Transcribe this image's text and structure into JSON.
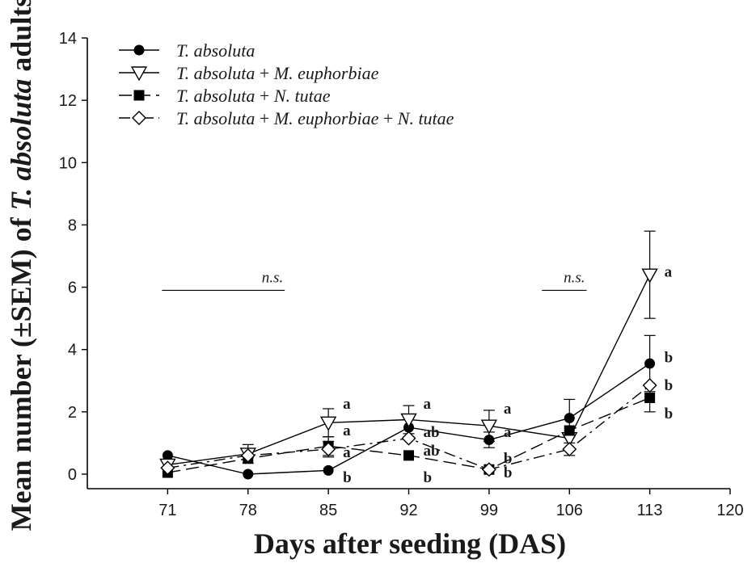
{
  "chart_data": {
    "type": "line",
    "xlabel": "Days after seeding (DAS)",
    "ylabel_parts": [
      "Mean number (±SEM) of ",
      "T. absoluta",
      " adults"
    ],
    "xlim": [
      64,
      120
    ],
    "ylim": [
      0,
      14
    ],
    "x_ticks": [
      71,
      78,
      85,
      92,
      99,
      106,
      113,
      120
    ],
    "y_ticks": [
      0,
      2,
      4,
      6,
      8,
      10,
      12,
      14
    ],
    "x": [
      71,
      78,
      85,
      92,
      99,
      106,
      113
    ],
    "series": [
      {
        "name": "T. absoluta",
        "legend_parts": [
          {
            "t": "T. absoluta",
            "i": true
          }
        ],
        "marker": "circle-filled",
        "dash": "solid",
        "values": [
          0.6,
          0.0,
          0.12,
          1.5,
          1.1,
          1.8,
          3.55
        ],
        "sem": [
          0.0,
          0.0,
          0.0,
          0.3,
          0.25,
          0.6,
          0.9
        ]
      },
      {
        "name": "T. absoluta + M. euphorbiae",
        "legend_parts": [
          {
            "t": "T. absoluta",
            "i": true
          },
          {
            "t": " + ",
            "i": false
          },
          {
            "t": "M. euphorbiae",
            "i": true
          }
        ],
        "marker": "triangle-down-open",
        "dash": "solid",
        "values": [
          0.3,
          0.65,
          1.65,
          1.75,
          1.55,
          1.15,
          6.4
        ],
        "sem": [
          0.0,
          0.3,
          0.45,
          0.45,
          0.5,
          0.0,
          1.4
        ]
      },
      {
        "name": "T. absoluta + N. tutae",
        "legend_parts": [
          {
            "t": "T. absoluta",
            "i": true
          },
          {
            "t": " + ",
            "i": false
          },
          {
            "t": "N. tutae",
            "i": true
          }
        ],
        "marker": "square-filled",
        "dash": "long-dash",
        "values": [
          0.05,
          0.5,
          0.9,
          0.6,
          0.15,
          1.4,
          2.45
        ],
        "sem": [
          0.0,
          0.0,
          0.3,
          0.0,
          0.0,
          0.0,
          0.45
        ]
      },
      {
        "name": "T. absoluta + M. euphorbiae + N. tutae",
        "legend_parts": [
          {
            "t": "T. absoluta",
            "i": true
          },
          {
            "t": " + ",
            "i": false
          },
          {
            "t": "M. euphorbiae",
            "i": true
          },
          {
            "t": " + ",
            "i": false
          },
          {
            "t": "N. tutae",
            "i": true
          }
        ],
        "marker": "diamond-open",
        "dash": "dash-dot",
        "values": [
          0.2,
          0.6,
          0.8,
          1.15,
          0.15,
          0.8,
          2.85
        ],
        "sem": [
          0.0,
          0.0,
          0.25,
          0.0,
          0.0,
          0.2,
          0.0
        ]
      }
    ],
    "ns_lines": [
      {
        "x": [
          70.5,
          81.2
        ],
        "y": 5.9,
        "label": "n.s."
      },
      {
        "x": [
          103.6,
          107.5
        ],
        "y": 5.9,
        "label": "n.s."
      }
    ],
    "annotations": [
      {
        "x": 85,
        "y": 2.25,
        "text": "a"
      },
      {
        "x": 85,
        "y": 1.4,
        "text": "a"
      },
      {
        "x": 85,
        "y": 0.7,
        "text": "a"
      },
      {
        "x": 85,
        "y": -0.1,
        "text": "b"
      },
      {
        "x": 92,
        "y": 2.25,
        "text": "a"
      },
      {
        "x": 92,
        "y": 1.35,
        "text": "ab"
      },
      {
        "x": 92,
        "y": 0.75,
        "text": "ab"
      },
      {
        "x": 92,
        "y": -0.1,
        "text": "b"
      },
      {
        "x": 99,
        "y": 2.1,
        "text": "a"
      },
      {
        "x": 99,
        "y": 1.35,
        "text": "a"
      },
      {
        "x": 99,
        "y": 0.5,
        "text": "b"
      },
      {
        "x": 99,
        "y": 0.05,
        "text": "b"
      },
      {
        "x": 113,
        "y": 6.5,
        "text": "a"
      },
      {
        "x": 113,
        "y": 3.75,
        "text": "b"
      },
      {
        "x": 113,
        "y": 2.85,
        "text": "b"
      },
      {
        "x": 113,
        "y": 1.95,
        "text": "b"
      }
    ],
    "grid": false,
    "legend_position": "top-left"
  }
}
